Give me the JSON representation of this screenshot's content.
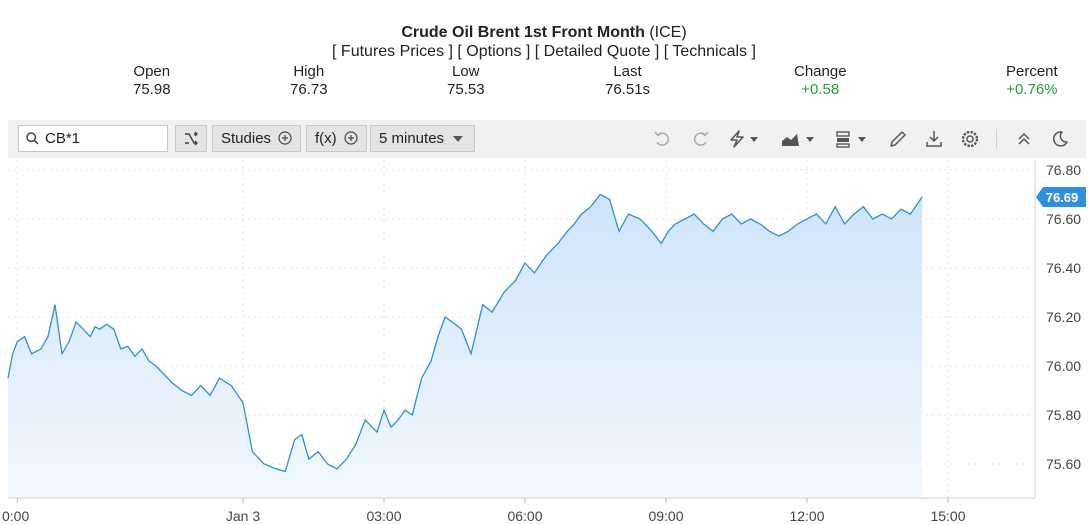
{
  "header": {
    "title_bold": "Crude Oil Brent 1st Front Month",
    "title_suffix": " (ICE)",
    "links": [
      "[ Futures Prices ]",
      "[ Options ]",
      "[ Detailed Quote ]",
      "[ Technicals ]"
    ]
  },
  "stats": [
    {
      "label": "Open",
      "value": "75.98"
    },
    {
      "label": "High",
      "value": "76.73"
    },
    {
      "label": "Low",
      "value": "75.53"
    },
    {
      "label": "Last",
      "value": "76.51s"
    },
    {
      "label": "Change",
      "value": "+0.58"
    },
    {
      "label": "Percent",
      "value": "+0.76%"
    }
  ],
  "toolbar": {
    "symbol": "CB*1",
    "studies_label": "Studies",
    "fx_label": "f(x)",
    "interval_label": "5 minutes",
    "icons": [
      "undo-icon",
      "redo-icon",
      "lightning-icon",
      "chart-type-icon",
      "layout-icon",
      "pencil-icon",
      "download-icon",
      "gear-icon",
      "collapse-icon",
      "moon-icon"
    ]
  },
  "colors": {
    "line": "#2d8fdd",
    "area_top": "#cfe4fa",
    "area_bottom": "#f2f8fe",
    "green": "#2a9d3a",
    "price_tag": "#2d8fdd"
  },
  "chart_data": {
    "type": "area",
    "x_tick_labels": [
      "0:00",
      "Jan 3",
      "03:00",
      "06:00",
      "09:00",
      "12:00",
      "15:00"
    ],
    "y_ticks": [
      75.6,
      75.8,
      76.0,
      76.2,
      76.4,
      76.6,
      76.8
    ],
    "y_tick_labels": [
      "75.60",
      "75.80",
      "76.00",
      "76.20",
      "76.40",
      "76.60",
      "76.80"
    ],
    "ylim": [
      75.46,
      76.83
    ],
    "last_price_label": "76.69",
    "last_price": 76.69,
    "grid": true,
    "x_hours": [
      21.0,
      21.1,
      21.2,
      21.35,
      21.5,
      21.7,
      21.85,
      22.0,
      22.15,
      22.3,
      22.45,
      22.6,
      22.75,
      22.85,
      22.95,
      23.1,
      23.25,
      23.4,
      23.55,
      23.7,
      23.85,
      24.0,
      24.15,
      24.3,
      24.5,
      24.7,
      24.9,
      25.1,
      25.3,
      25.5,
      25.75,
      26.0,
      26.2,
      26.45,
      26.7,
      26.9,
      27.1,
      27.25,
      27.4,
      27.6,
      27.8,
      28.0,
      28.2,
      28.4,
      28.6,
      28.85,
      29.0,
      29.15,
      29.3,
      29.45,
      29.6,
      29.8,
      30.0,
      30.15,
      30.3,
      30.45,
      30.65,
      30.85,
      31.1,
      31.3,
      31.55,
      31.8,
      32.0,
      32.2,
      32.45,
      32.7,
      32.9,
      33.05,
      33.2,
      33.4,
      33.6,
      33.8,
      34.0,
      34.2,
      34.45,
      34.7,
      34.9,
      35.05,
      35.2,
      35.4,
      35.6,
      35.8,
      36.0,
      36.2,
      36.4,
      36.6,
      36.8,
      37.0,
      37.2,
      37.4,
      37.6,
      37.8,
      38.0,
      38.2,
      38.4,
      38.6,
      38.8,
      39.0,
      39.2,
      39.4,
      39.6,
      39.8,
      40.0,
      40.2,
      40.45
    ],
    "y": [
      75.95,
      76.05,
      76.1,
      76.12,
      76.05,
      76.07,
      76.12,
      76.25,
      76.05,
      76.1,
      76.18,
      76.15,
      76.12,
      76.16,
      76.15,
      76.17,
      76.15,
      76.07,
      76.08,
      76.04,
      76.07,
      76.02,
      76.0,
      75.97,
      75.93,
      75.9,
      75.88,
      75.92,
      75.88,
      75.95,
      75.92,
      75.85,
      75.65,
      75.6,
      75.58,
      75.57,
      75.7,
      75.72,
      75.62,
      75.65,
      75.6,
      75.58,
      75.62,
      75.68,
      75.78,
      75.73,
      75.82,
      75.75,
      75.78,
      75.82,
      75.8,
      75.95,
      76.02,
      76.12,
      76.2,
      76.18,
      76.15,
      76.05,
      76.25,
      76.22,
      76.3,
      76.35,
      76.42,
      76.38,
      76.45,
      76.5,
      76.55,
      76.58,
      76.62,
      76.65,
      76.7,
      76.68,
      76.55,
      76.62,
      76.6,
      76.55,
      76.5,
      76.55,
      76.58,
      76.6,
      76.62,
      76.58,
      76.55,
      76.6,
      76.62,
      76.58,
      76.6,
      76.58,
      76.55,
      76.53,
      76.55,
      76.58,
      76.6,
      76.62,
      76.58,
      76.65,
      76.58,
      76.62,
      76.65,
      76.6,
      76.62,
      76.6,
      76.64,
      76.62,
      76.69
    ]
  }
}
